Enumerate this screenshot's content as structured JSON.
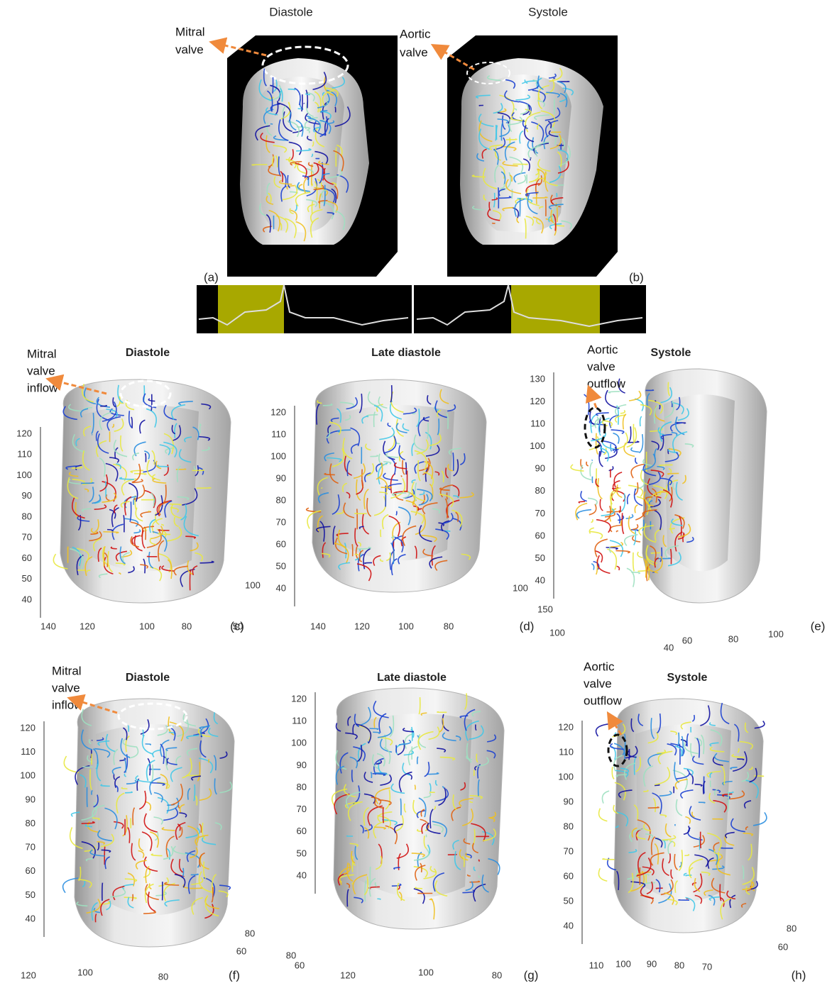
{
  "figure": {
    "top": {
      "titles": [
        "Diastole",
        "Systole"
      ],
      "annotations": [
        [
          "Mitral",
          "valve"
        ],
        [
          "Aortic",
          "valve"
        ]
      ],
      "labels": [
        "(a)",
        "(b)"
      ]
    },
    "panels": [
      {
        "title": "Diastole",
        "annotation": [
          "Mitral",
          "valve",
          "inflow"
        ],
        "label": "(c)",
        "y_ticks": [
          120,
          110,
          100,
          90,
          80,
          70,
          60,
          50,
          40
        ],
        "x_ticks": [
          140,
          120,
          100,
          80
        ],
        "z_ticks": [
          100,
          50
        ]
      },
      {
        "title": "Late diastole",
        "label": "(d)",
        "y_ticks": [
          120,
          110,
          100,
          90,
          80,
          70,
          60,
          50,
          40
        ],
        "x_ticks": [
          140,
          120,
          100,
          80
        ],
        "z_ticks": [
          100
        ]
      },
      {
        "title": "Systole",
        "annotation": [
          "Aortic",
          "valve",
          "outflow"
        ],
        "label": "(e)",
        "y_ticks": [
          130,
          120,
          110,
          100,
          90,
          80,
          70,
          60,
          50,
          40
        ],
        "x_ticks": [
          40,
          60,
          80,
          100
        ],
        "z_ticks": [
          150,
          100
        ]
      },
      {
        "title": "Diastole",
        "annotation": [
          "Mitral",
          "valve",
          "inflow"
        ],
        "label": "(f)",
        "y_ticks": [
          120,
          110,
          100,
          90,
          80,
          70,
          60,
          50,
          40
        ],
        "x_ticks": [
          120,
          100,
          80
        ],
        "z_ticks": [
          80,
          60
        ]
      },
      {
        "title": "Late diastole",
        "label": "(g)",
        "y_ticks": [
          120,
          110,
          100,
          90,
          80,
          70,
          60,
          50,
          40
        ],
        "x_ticks": [
          120,
          100,
          80
        ],
        "z_ticks": [
          80,
          60
        ]
      },
      {
        "title": "Systole",
        "annotation": [
          "Aortic",
          "valve",
          "outflow"
        ],
        "label": "(h)",
        "y_ticks": [
          120,
          110,
          100,
          90,
          80,
          70,
          60,
          50,
          40
        ],
        "x_ticks": [
          110,
          100,
          90,
          80,
          70
        ],
        "z_ticks": [
          80,
          60
        ]
      }
    ]
  }
}
